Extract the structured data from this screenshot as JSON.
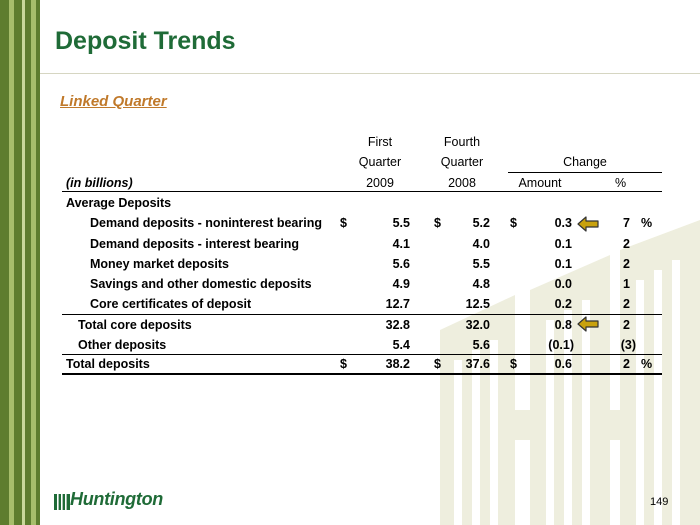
{
  "title": "Deposit Trends",
  "subtitle": "Linked Quarter",
  "table": {
    "headers": {
      "col1_line1": "First",
      "col1_line2": "Quarter",
      "col1_line3": "2009",
      "col2_line1": "Fourth",
      "col2_line2": "Quarter",
      "col2_line3": "2008",
      "change": "Change",
      "amount": "Amount",
      "pct": "%",
      "units": "(in billions)"
    },
    "section_label": "Average Deposits",
    "rows": [
      {
        "label": "Demand deposits - noninterest bearing",
        "cur1": "$",
        "q1": "5.5",
        "cur2": "$",
        "q2": "5.2",
        "cur3": "$",
        "amt": "0.3",
        "pct": "7",
        "sign": "%"
      },
      {
        "label": "Demand deposits - interest bearing",
        "q1": "4.1",
        "q2": "4.0",
        "amt": "0.1",
        "pct": "2"
      },
      {
        "label": "Money market deposits",
        "q1": "5.6",
        "q2": "5.5",
        "amt": "0.1",
        "pct": "2"
      },
      {
        "label": "Savings and other domestic deposits",
        "q1": "4.9",
        "q2": "4.8",
        "amt": "0.0",
        "pct": "1"
      },
      {
        "label": "Core certificates of deposit",
        "q1": "12.7",
        "q2": "12.5",
        "amt": "0.2",
        "pct": "2"
      },
      {
        "label": "Total core deposits",
        "q1": "32.8",
        "q2": "32.0",
        "amt": "0.8",
        "pct": "2"
      },
      {
        "label": "Other deposits",
        "q1": "5.4",
        "q2": "5.6",
        "amt": "(0.1)",
        "pct": "(3)"
      },
      {
        "label": "Total deposits",
        "cur1": "$",
        "q1": "38.2",
        "cur2": "$",
        "q2": "37.6",
        "cur3": "$",
        "amt": "0.6",
        "pct": "2",
        "sign": "%"
      }
    ]
  },
  "logo": {
    "text": "Huntington",
    "icon": "huntington-logo-icon"
  },
  "page_number": "149",
  "colors": {
    "title": "#1f6b37",
    "subtitle": "#c0792a",
    "stripe_dark": "#5e7d2e",
    "stripe_light": "#a7be6b",
    "arrow": "#c9a20e"
  },
  "icons": {
    "arrow": "left-arrow-icon"
  }
}
